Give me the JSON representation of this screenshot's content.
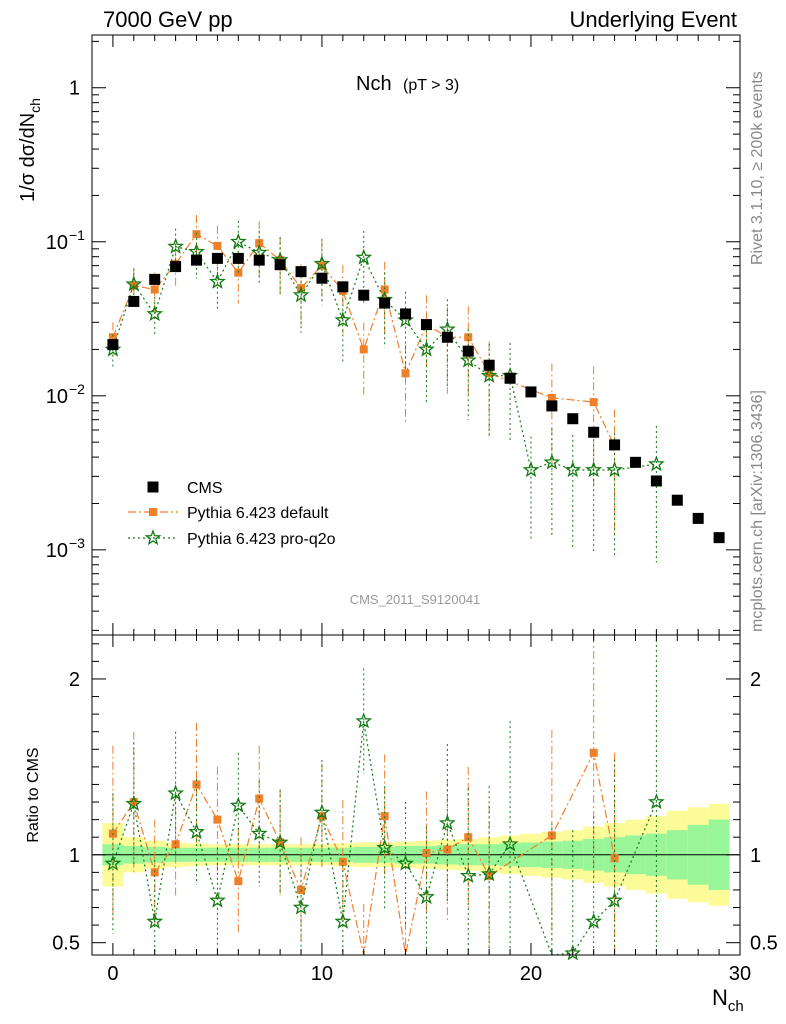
{
  "header": {
    "left": "7000 GeV pp",
    "right": "Underlying Event"
  },
  "side_labels": {
    "rivet": "Rivet 3.1.10, ≥ 200k events",
    "mcplots": "mcplots.cern.ch [arXiv:1306.3436]"
  },
  "watermark": "CMS_2011_S9120041",
  "colors": {
    "cms": "#000000",
    "pythia_default": "#f07f2a",
    "pythia_proq2o": "#117a11",
    "band_inner": "#98f598",
    "band_outer": "#fbfb98"
  },
  "chart_data": [
    {
      "type": "scatter",
      "title": "Nch",
      "title_sub": "(pT >  3)",
      "ylabel": "1/σ dσ/dN",
      "ylabel_sub": "ch",
      "yscale": "log",
      "xlim": [
        -1,
        30
      ],
      "ylim": [
        0.00028,
        2.2
      ],
      "y_ticks": [
        {
          "value": 1,
          "label": "1"
        },
        {
          "value": 0.1,
          "label": "10",
          "exp": "−1"
        },
        {
          "value": 0.01,
          "label": "10",
          "exp": "−2"
        },
        {
          "value": 0.001,
          "label": "10",
          "exp": "−3"
        }
      ],
      "legend_position": "lower-left",
      "series": [
        {
          "name": "CMS",
          "x": [
            0,
            1,
            2,
            3,
            4,
            5,
            6,
            7,
            8,
            9,
            10,
            11,
            12,
            13,
            14,
            15,
            16,
            17,
            18,
            19,
            20,
            21,
            22,
            23,
            24,
            25,
            26,
            27,
            28,
            29
          ],
          "y": [
            0.0215,
            0.041,
            0.057,
            0.069,
            0.076,
            0.078,
            0.078,
            0.076,
            0.071,
            0.064,
            0.058,
            0.051,
            0.045,
            0.04,
            0.034,
            0.029,
            0.024,
            0.0195,
            0.0158,
            0.013,
            0.0106,
            0.0086,
            0.0071,
            0.0058,
            0.0048,
            0.0037,
            0.0028,
            0.0021,
            0.0016,
            0.0012
          ]
        },
        {
          "name": "Pythia 6.423 default",
          "x": [
            0,
            1,
            2,
            3,
            4,
            5,
            6,
            7,
            8,
            9,
            10,
            11,
            12,
            13,
            14,
            15,
            16,
            17,
            18,
            21,
            23,
            24
          ],
          "y": [
            0.024,
            0.052,
            0.049,
            0.072,
            0.112,
            0.094,
            0.063,
            0.098,
            0.076,
            0.05,
            0.07,
            0.048,
            0.02,
            0.049,
            0.014,
            0.029,
            0.024,
            0.024,
            0.014,
            0.0097,
            0.0091,
            0.0047
          ]
        },
        {
          "name": "Pythia 6.423 pro-q2o",
          "x": [
            0,
            1,
            2,
            3,
            4,
            5,
            6,
            7,
            8,
            9,
            10,
            11,
            12,
            13,
            14,
            15,
            16,
            17,
            18,
            19,
            20,
            21,
            22,
            23,
            24,
            26
          ],
          "y": [
            0.02,
            0.053,
            0.034,
            0.093,
            0.086,
            0.055,
            0.1,
            0.085,
            0.076,
            0.045,
            0.072,
            0.031,
            0.079,
            0.042,
            0.031,
            0.02,
            0.027,
            0.017,
            0.0135,
            0.0135,
            0.0033,
            0.0037,
            0.0033,
            0.0033,
            0.0033,
            0.0036
          ]
        }
      ]
    },
    {
      "type": "scatter",
      "xlabel": "N",
      "xlabel_sub": "ch",
      "ylabel": "Ratio to CMS",
      "xlim": [
        -1,
        30
      ],
      "ylim": [
        0.43,
        2.25
      ],
      "x_ticks": [
        0,
        10,
        20,
        30
      ],
      "y_ticks": [
        {
          "value": 2,
          "label": "2"
        },
        {
          "value": 1,
          "label": "1"
        },
        {
          "value": 0.5,
          "label": "0.5"
        }
      ],
      "band_x": [
        -0.5,
        0.5,
        1.5,
        2.5,
        3.5,
        4.5,
        5.5,
        6.5,
        7.5,
        8.5,
        9.5,
        10.5,
        11.5,
        12.5,
        13.5,
        14.5,
        15.5,
        16.5,
        17.5,
        18.5,
        19.5,
        20.5,
        21.5,
        22.5,
        23.5,
        24.5,
        25.5,
        26.5,
        27.5,
        28.5,
        29.5
      ],
      "band_inner": [
        0.06,
        0.05,
        0.045,
        0.04,
        0.04,
        0.04,
        0.04,
        0.04,
        0.04,
        0.04,
        0.04,
        0.04,
        0.045,
        0.045,
        0.05,
        0.05,
        0.055,
        0.06,
        0.06,
        0.065,
        0.07,
        0.075,
        0.08,
        0.09,
        0.1,
        0.11,
        0.12,
        0.14,
        0.17,
        0.2
      ],
      "band_outer": [
        0.18,
        0.1,
        0.08,
        0.07,
        0.065,
        0.06,
        0.06,
        0.06,
        0.06,
        0.06,
        0.06,
        0.065,
        0.07,
        0.07,
        0.075,
        0.08,
        0.085,
        0.09,
        0.1,
        0.11,
        0.12,
        0.13,
        0.14,
        0.16,
        0.18,
        0.2,
        0.22,
        0.25,
        0.27,
        0.29
      ],
      "series": [
        {
          "name": "Pythia 6.423 default",
          "x": [
            0,
            1,
            2,
            3,
            4,
            5,
            6,
            7,
            8,
            9,
            10,
            11,
            12,
            13,
            14,
            15,
            16,
            17,
            18,
            21,
            23,
            24
          ],
          "y": [
            1.12,
            1.3,
            0.9,
            1.06,
            1.4,
            1.2,
            0.85,
            1.32,
            1.07,
            0.8,
            1.22,
            0.96,
            0.42,
            1.22,
            0.41,
            1.01,
            1.03,
            1.1,
            0.88,
            1.11,
            1.58,
            0.98
          ],
          "err": [
            0.5,
            0.4,
            0.3,
            0.3,
            0.35,
            0.3,
            0.3,
            0.3,
            0.3,
            0.3,
            0.3,
            0.35,
            0.3,
            0.35,
            0.3,
            0.35,
            0.4,
            0.4,
            0.4,
            0.6,
            0.7,
            0.6
          ]
        },
        {
          "name": "Pythia 6.423 pro-q2o",
          "x": [
            0,
            1,
            2,
            3,
            4,
            5,
            6,
            7,
            8,
            9,
            10,
            11,
            12,
            13,
            14,
            15,
            16,
            17,
            18,
            19,
            21,
            22,
            23,
            24,
            26
          ],
          "y": [
            0.95,
            1.29,
            0.62,
            1.35,
            1.13,
            0.74,
            1.28,
            1.12,
            1.07,
            0.7,
            1.24,
            0.62,
            1.76,
            1.04,
            0.95,
            0.76,
            1.18,
            0.88,
            0.89,
            1.06,
            0.38,
            0.44,
            0.62,
            0.74,
            1.3
          ],
          "err": [
            0.4,
            0.35,
            0.35,
            0.35,
            0.3,
            0.3,
            0.3,
            0.3,
            0.3,
            0.3,
            0.3,
            0.35,
            0.3,
            0.35,
            0.35,
            0.4,
            0.45,
            0.5,
            0.5,
            0.7,
            0.8,
            0.7,
            0.6,
            0.8,
            1.2
          ]
        }
      ]
    }
  ]
}
